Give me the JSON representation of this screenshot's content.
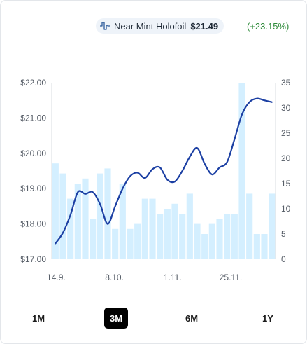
{
  "header": {
    "condition": "Near Mint Holofoil",
    "price": "$21.49",
    "change": "(+23.15%)",
    "icon": "price-trend-icon",
    "accent_color": "#2e8b3a"
  },
  "range_selector": {
    "options": [
      "1M",
      "3M",
      "6M",
      "1Y"
    ],
    "active": "3M"
  },
  "chart_data": {
    "type": "bar+line",
    "title": "",
    "xlabel": "",
    "ylabel": "",
    "x_ticks": [
      "14.9.",
      "8.10.",
      "1.11.",
      "25.11."
    ],
    "y_left": {
      "ticks": [
        "$17.00",
        "$18.00",
        "$19.00",
        "$20.00",
        "$21.00",
        "$22.00"
      ],
      "range": [
        17,
        22
      ]
    },
    "y_right": {
      "ticks": [
        "0",
        "5",
        "10",
        "15",
        "20",
        "25",
        "30",
        "35"
      ],
      "range": [
        0,
        35
      ]
    },
    "bar_color": "#d4efff",
    "line_color": "#1b3fa3",
    "volume_bars": [
      19,
      17,
      12,
      15,
      16,
      8,
      17,
      18,
      6,
      15,
      6,
      7,
      12,
      12,
      9,
      10,
      11,
      9,
      13,
      7,
      5,
      7,
      8,
      9,
      9,
      35,
      13,
      5,
      5,
      13
    ],
    "price_line": [
      17.45,
      17.75,
      18.25,
      18.9,
      18.85,
      18.9,
      18.55,
      18.0,
      18.5,
      19.0,
      19.35,
      19.45,
      19.3,
      19.55,
      19.6,
      19.25,
      19.2,
      19.5,
      19.9,
      20.15,
      19.7,
      19.4,
      19.6,
      19.75,
      20.4,
      21.1,
      21.45,
      21.55,
      21.5,
      21.45
    ]
  }
}
